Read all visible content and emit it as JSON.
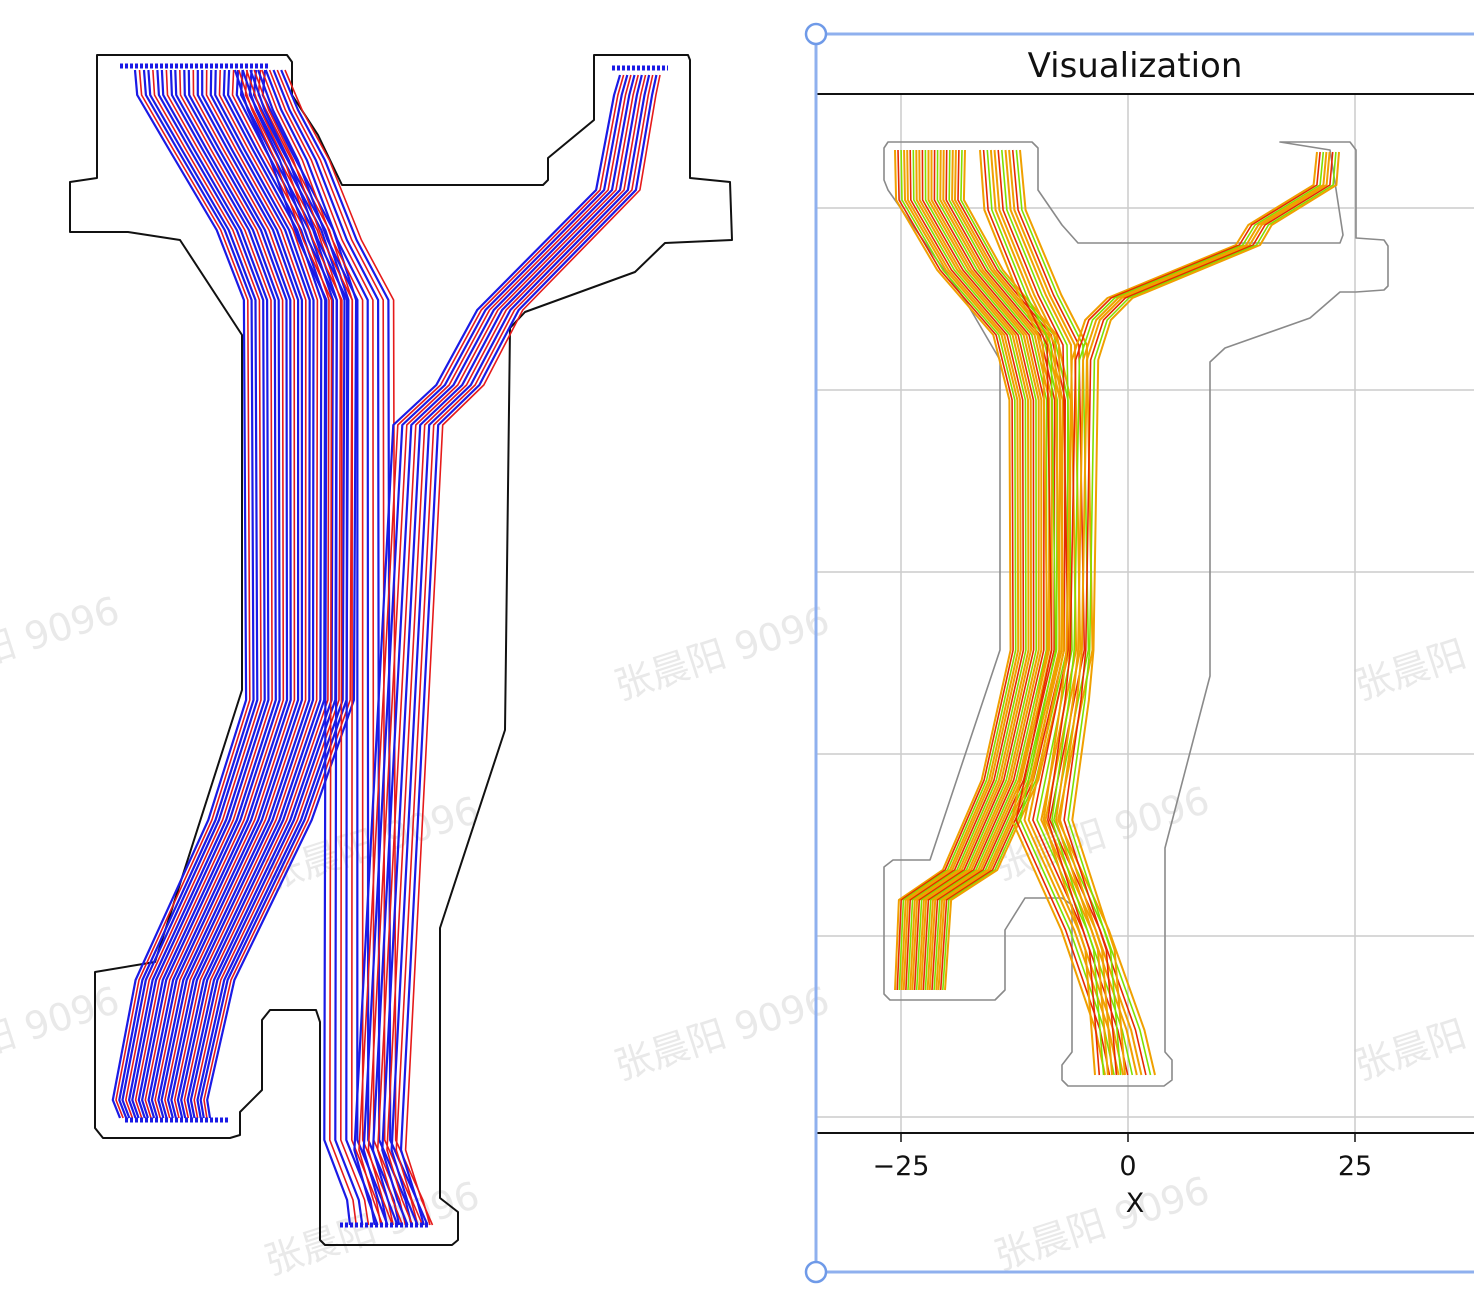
{
  "right_view": {
    "title": "Visualization",
    "x_ticks": [
      "−25",
      "0",
      "25"
    ],
    "x_axis_label": "X"
  },
  "watermark_text": "张晨阳 9096",
  "colors": {
    "left_trace_primary": "#1a1ae6",
    "left_trace_secondary": "#e61a1a",
    "right_trace_primary": "#f0a000",
    "right_trace_secondary": "#e62a00",
    "right_trace_tertiary": "#7fe000",
    "selection_frame": "#7fa8f0"
  }
}
